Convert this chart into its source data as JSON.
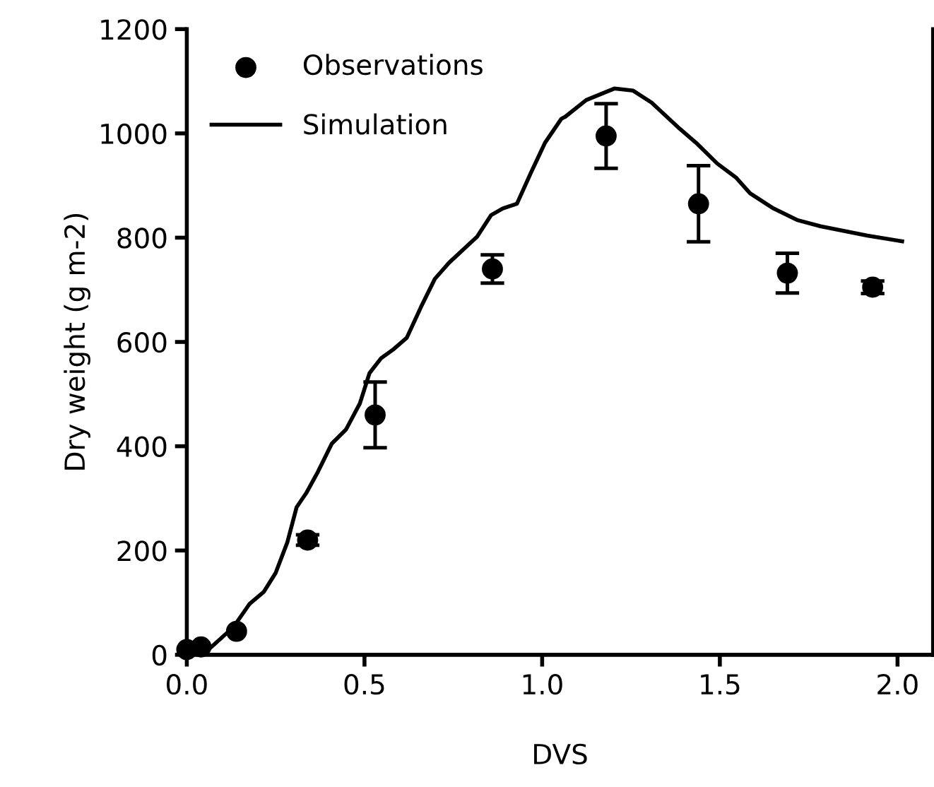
{
  "chart_data": {
    "type": "line",
    "xlabel": "DVS",
    "ylabel": "Dry weight (g m-2)",
    "xlim": [
      0,
      2.1
    ],
    "xticks": [
      {
        "value": 0,
        "label": "0.0"
      },
      0.5,
      {
        "value": 1,
        "label": "1.0"
      },
      1.5,
      {
        "value": 2,
        "label": "2.0"
      }
    ],
    "ylim": [
      0,
      1200
    ],
    "yticks": [
      0,
      200,
      400,
      600,
      800,
      1000,
      1200
    ],
    "grid": false,
    "legend": "top left",
    "series": [
      {
        "name": "Observations",
        "type": "scatter",
        "marker": "circle",
        "color": "#000000",
        "x": [
          0.0,
          0.04,
          0.14,
          0.34,
          0.53,
          0.86,
          1.18,
          1.44,
          1.69,
          1.93
        ],
        "values": [
          10,
          15,
          45,
          220,
          460,
          740,
          995,
          865,
          732,
          705
        ],
        "errors": [
          null,
          null,
          null,
          10,
          63,
          27,
          62,
          73,
          38,
          12
        ]
      },
      {
        "name": "Simulation",
        "line_style": "solid",
        "color": "#000000",
        "x": [
          0,
          0.066,
          0.131,
          0.177,
          0.217,
          0.25,
          0.283,
          0.309,
          0.336,
          0.369,
          0.408,
          0.448,
          0.487,
          0.514,
          0.547,
          0.58,
          0.619,
          0.659,
          0.698,
          0.738,
          0.817,
          0.856,
          0.889,
          0.929,
          0.968,
          1.008,
          1.054,
          1.065,
          1.124,
          1.203,
          1.256,
          1.308,
          1.387,
          1.433,
          1.493,
          1.546,
          1.585,
          1.651,
          1.717,
          1.783,
          1.915,
          2.013
        ],
        "values": [
          0,
          13,
          53,
          98,
          121,
          157,
          216,
          283,
          310,
          351,
          405,
          432,
          482,
          540,
          569,
          585,
          608,
          667,
          721,
          752,
          802,
          843,
          856,
          865,
          924,
          982,
          1028,
          1032,
          1064,
          1086,
          1082,
          1059,
          1009,
          982,
          942,
          915,
          885,
          856,
          834,
          822,
          804,
          793
        ]
      }
    ]
  }
}
